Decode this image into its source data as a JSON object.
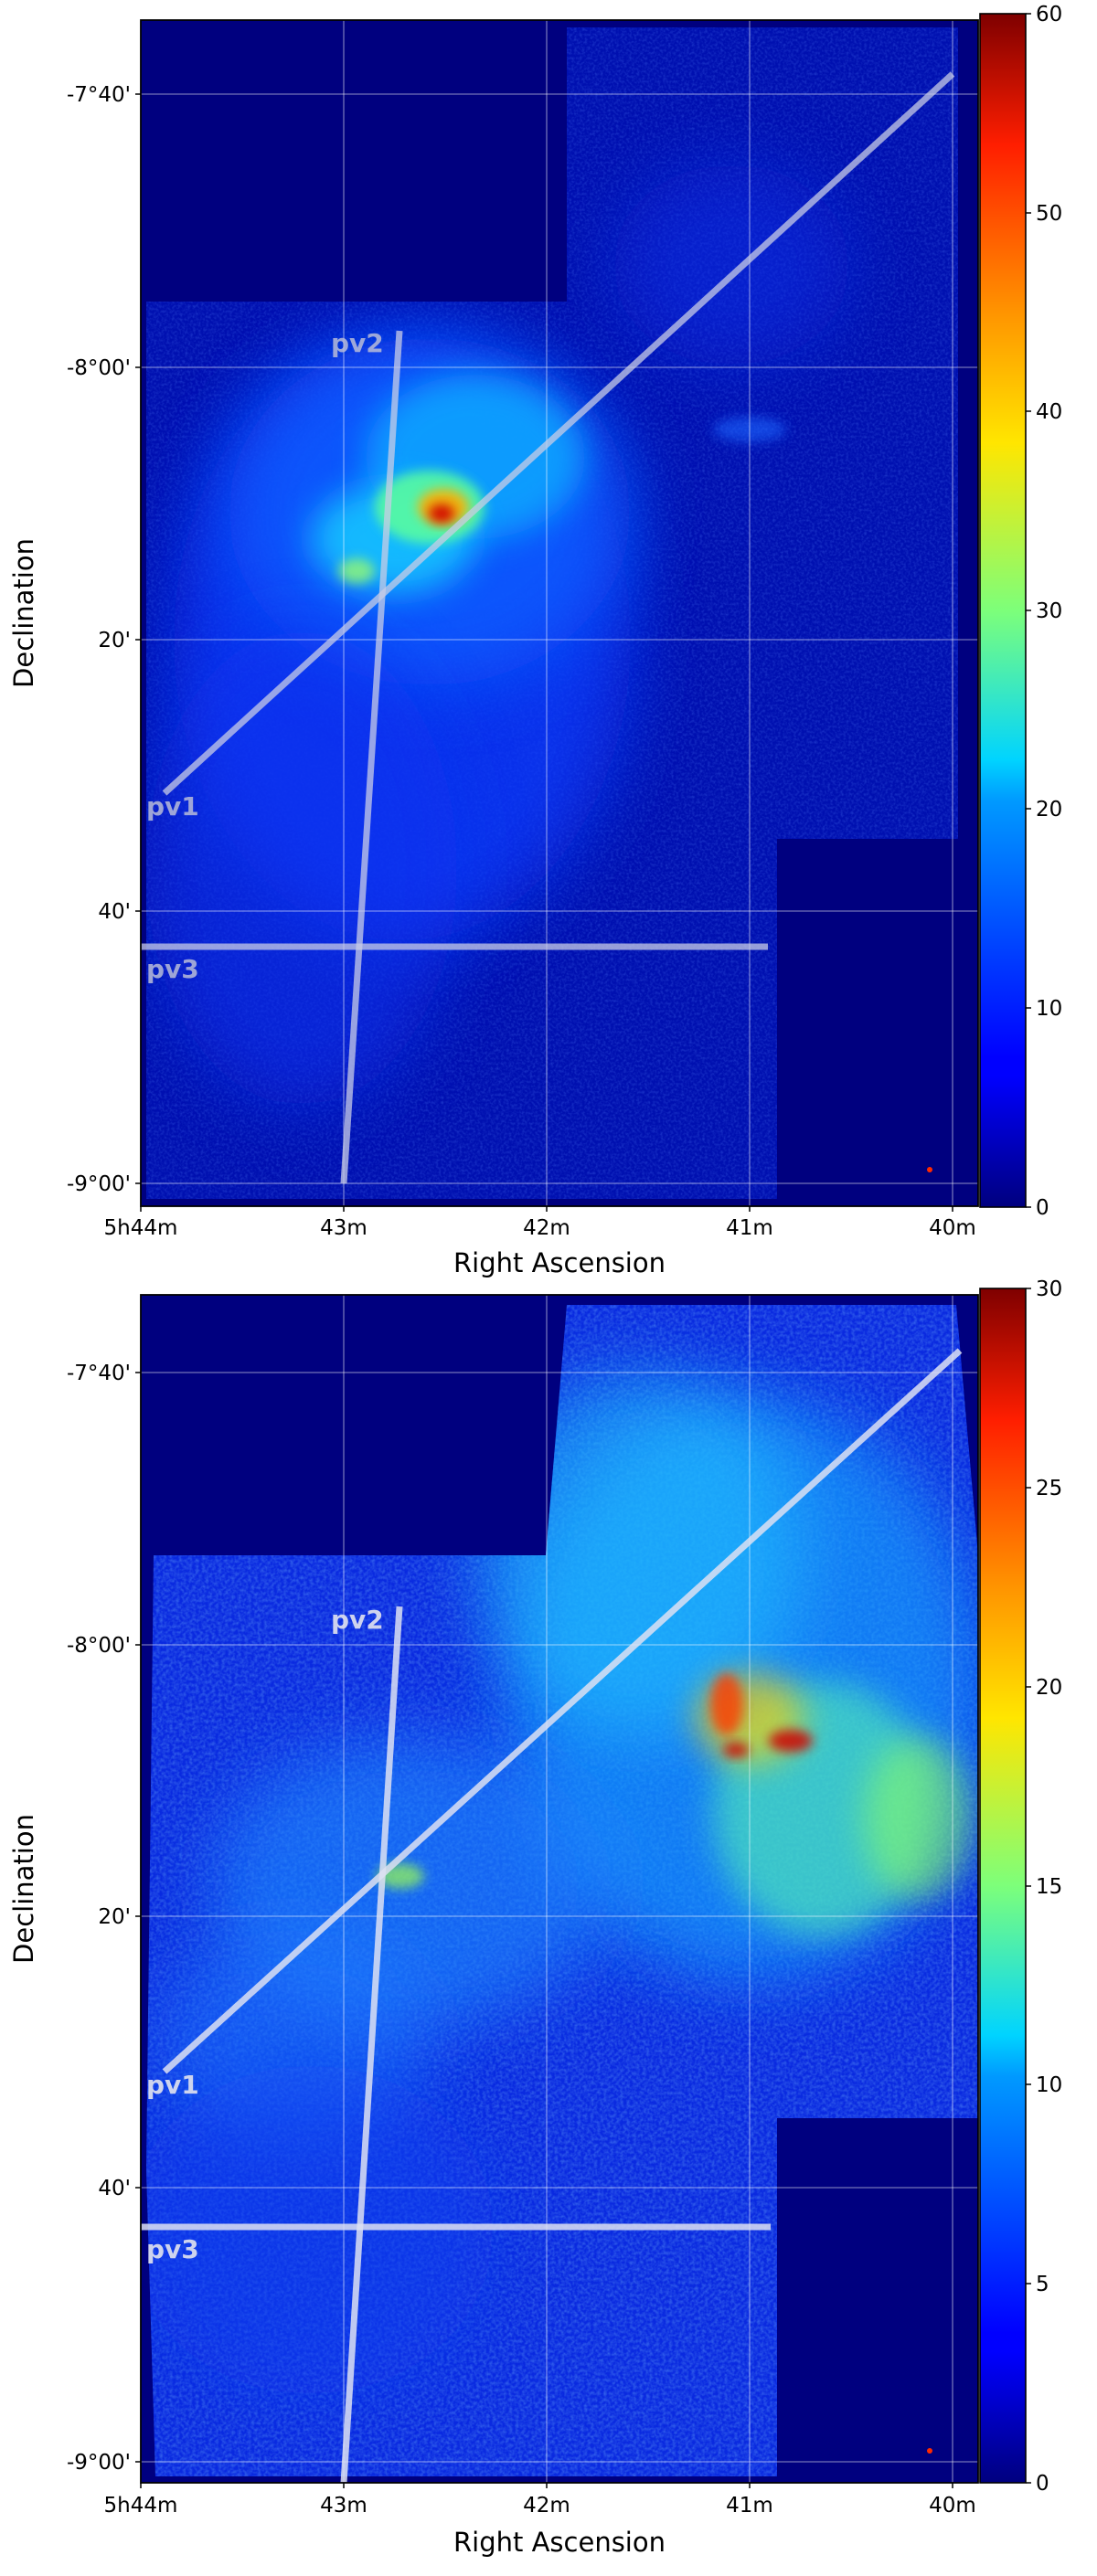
{
  "chart_data": [
    {
      "type": "heatmap",
      "panel": "top",
      "xlabel": "Right Ascension",
      "ylabel": "Declination",
      "x_ticks": [
        "5h44m",
        "43m",
        "42m",
        "41m",
        "40m"
      ],
      "y_ticks": [
        "-7°40'",
        "-8°00'",
        "20'",
        "40'",
        "-9°00'"
      ],
      "colorbar": {
        "colormap": "jet",
        "range": [
          0,
          60
        ],
        "ticks": [
          "0",
          "10",
          "20",
          "30",
          "40",
          "50",
          "60"
        ]
      },
      "cut_lines": [
        {
          "label": "pv1"
        },
        {
          "label": "pv2"
        },
        {
          "label": "pv3"
        }
      ],
      "grid": true,
      "peak_value": 60
    },
    {
      "type": "heatmap",
      "panel": "bottom",
      "xlabel": "Right Ascension",
      "ylabel": "Declination",
      "x_ticks": [
        "5h44m",
        "43m",
        "42m",
        "41m",
        "40m"
      ],
      "y_ticks": [
        "-7°40'",
        "-8°00'",
        "20'",
        "40'",
        "-9°00'"
      ],
      "colorbar": {
        "colormap": "jet",
        "range": [
          0,
          30
        ],
        "ticks": [
          "0",
          "5",
          "10",
          "15",
          "20",
          "25",
          "30"
        ]
      },
      "cut_lines": [
        {
          "label": "pv1"
        },
        {
          "label": "pv2"
        },
        {
          "label": "pv3"
        }
      ],
      "grid": true,
      "peak_value": 30
    }
  ]
}
